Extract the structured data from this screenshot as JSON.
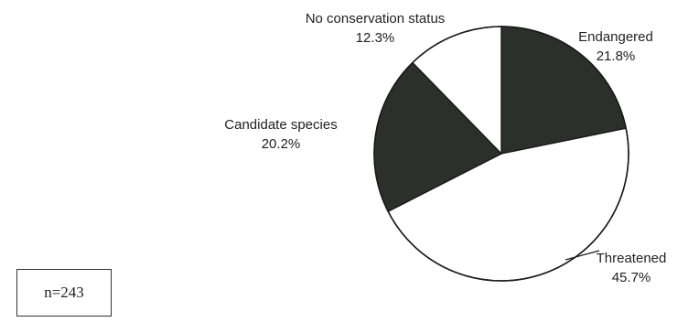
{
  "chart_data": {
    "type": "pie",
    "title": "",
    "slices": [
      {
        "name": "Endangered",
        "value": 21.8,
        "label": "21.8%",
        "color": "#2b302b"
      },
      {
        "name": "Threatened",
        "value": 45.7,
        "label": "45.7%",
        "color": "#ffffff"
      },
      {
        "name": "Candidate species",
        "value": 20.2,
        "label": "20.2%",
        "color": "#2b302b"
      },
      {
        "name": "No conservation status",
        "value": 12.3,
        "label": "12.3%",
        "color": "#ffffff"
      }
    ],
    "start_angle_deg": 0,
    "direction": "clockwise",
    "outline_color": "#1a1a1a",
    "annotation": "n=243"
  }
}
